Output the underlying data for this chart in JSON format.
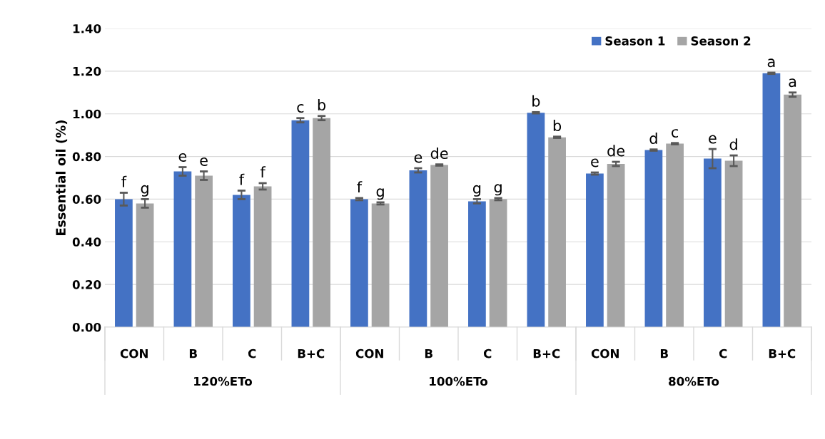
{
  "chart_data": {
    "type": "bar",
    "ylabel": "Essential oil (%)",
    "categories": [
      "CON",
      "B",
      "C",
      "B+C",
      "CON",
      "B",
      "C",
      "B+C",
      "CON",
      "B",
      "C",
      "B+C"
    ],
    "series": [
      {
        "name": "Season 1",
        "color": "#4472c4",
        "values": [
          0.6,
          0.73,
          0.62,
          0.97,
          0.6,
          0.735,
          0.59,
          1.005,
          0.72,
          0.83,
          0.79,
          1.19
        ],
        "errors": [
          0.03,
          0.02,
          0.02,
          0.01,
          0.005,
          0.01,
          0.01,
          0.003,
          0.005,
          0.003,
          0.045,
          0.003
        ],
        "value_labels": [
          "f",
          "e",
          "f",
          "c",
          "f",
          "e",
          "g",
          "b",
          "e",
          "d",
          "e",
          "a"
        ]
      },
      {
        "name": "Season 2",
        "color": "#a5a5a5",
        "values": [
          0.58,
          0.71,
          0.66,
          0.98,
          0.58,
          0.76,
          0.6,
          0.89,
          0.765,
          0.86,
          0.78,
          1.09
        ],
        "errors": [
          0.02,
          0.02,
          0.015,
          0.01,
          0.005,
          0.003,
          0.005,
          0.003,
          0.01,
          0.003,
          0.025,
          0.01
        ],
        "value_labels": [
          "g",
          "e",
          "f",
          "b",
          "g",
          "de",
          "g",
          "b",
          "de",
          "c",
          "d",
          "a"
        ]
      }
    ],
    "annotations": [
      "120%ETo",
      "100%ETo",
      "80%ETo"
    ],
    "ylim": [
      0,
      1.4
    ],
    "yticks": [
      {
        "value": 0,
        "label": "0.00"
      },
      {
        "value": 0.2,
        "label": "0.20"
      },
      {
        "value": 0.4,
        "label": "0.40"
      },
      {
        "value": 0.6,
        "label": "0.60"
      },
      {
        "value": 0.8,
        "label": "0.80"
      },
      {
        "value": 1.0,
        "label": "1.00"
      },
      {
        "value": 1.2,
        "label": "1.20"
      },
      {
        "value": 1.4,
        "label": "1.40"
      }
    ],
    "grid": "y",
    "legend": "top right"
  }
}
